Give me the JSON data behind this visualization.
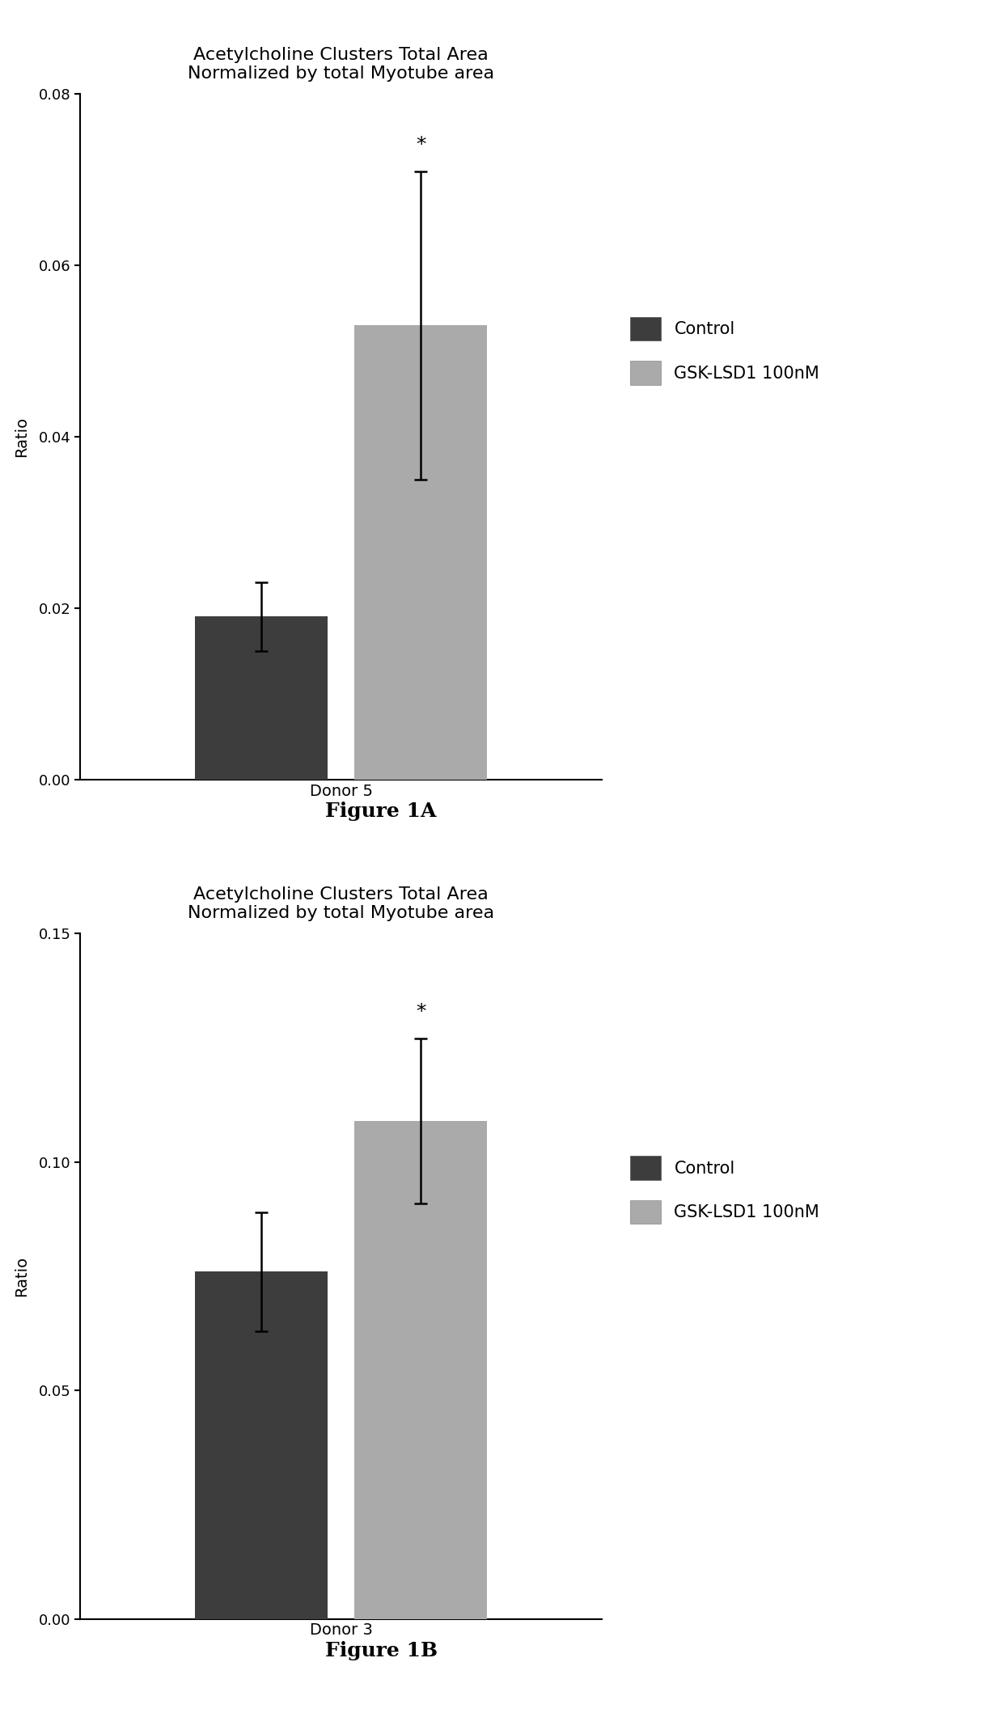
{
  "fig1A": {
    "title": "Acetylcholine Clusters Total Area\nNormalized by total Myotube area",
    "xlabel": "Donor 5",
    "ylabel": "Ratio",
    "ylim": [
      0,
      0.08
    ],
    "yticks": [
      0.0,
      0.02,
      0.04,
      0.06,
      0.08
    ],
    "ytick_labels": [
      "0.00",
      "0.02",
      "0.04",
      "0.06",
      "0.08"
    ],
    "bar_values": [
      0.019,
      0.053
    ],
    "bar_errors": [
      0.004,
      0.018
    ],
    "bar_colors": [
      "#3d3d3d",
      "#aaaaaa"
    ],
    "legend_labels": [
      "Control",
      "GSK-LSD1 100nM"
    ],
    "significance": "*",
    "sig_bar_index": 1,
    "figure_label": "Figure 1A"
  },
  "fig1B": {
    "title": "Acetylcholine Clusters Total Area\nNormalized by total Myotube area",
    "xlabel": "Donor 3",
    "ylabel": "Ratio",
    "ylim": [
      0,
      0.15
    ],
    "yticks": [
      0.0,
      0.05,
      0.1,
      0.15
    ],
    "ytick_labels": [
      "0.00",
      "0.05",
      "0.10",
      "0.15"
    ],
    "bar_values": [
      0.076,
      0.109
    ],
    "bar_errors": [
      0.013,
      0.018
    ],
    "bar_colors": [
      "#3d3d3d",
      "#aaaaaa"
    ],
    "legend_labels": [
      "Control",
      "GSK-LSD1 100nM"
    ],
    "significance": "*",
    "sig_bar_index": 1,
    "figure_label": "Figure 1B"
  },
  "background_color": "#ffffff",
  "title_fontsize": 16,
  "axis_fontsize": 14,
  "tick_fontsize": 13,
  "legend_fontsize": 15,
  "figure_label_fontsize": 18,
  "bar_width": 0.28,
  "capsize": 6
}
